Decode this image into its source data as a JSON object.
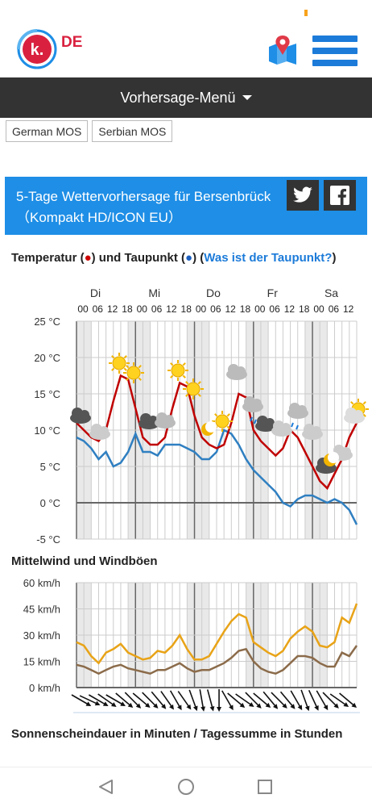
{
  "logo": {
    "letter": "k.",
    "country": "DE"
  },
  "menu": {
    "label": "Vorhersage-Menü"
  },
  "tabs": [
    "German MOS",
    "Serbian MOS"
  ],
  "header": {
    "title": "5-Tage Wettervorhersage für Bersenbrück（Kompakt HD/ICON EU）"
  },
  "icons": {
    "twitter": "twitter-icon",
    "facebook": "facebook-icon",
    "map": "map-pin-icon",
    "menu": "hamburger-icon"
  },
  "colors": {
    "brand_blue": "#1e8ee6",
    "temp": "#c00000",
    "dew": "#2f7fc1",
    "wind": "#8b6b4a",
    "gust": "#e8a317"
  },
  "temp_section": {
    "title_a": "Temperatur (",
    "dot_red": "●",
    "title_b": ") und Taupunkt (",
    "dot_blue": "●",
    "title_c": ") (",
    "link": "Was ist der Taupunkt?",
    "title_d": ")"
  },
  "wind_section": {
    "title": "Mittelwind und Windböen"
  },
  "sun_section": {
    "title": "Sonnenscheindauer in Minuten / Tagessumme in Stunden"
  },
  "chart_data": [
    {
      "type": "line",
      "title": "Temperatur und Taupunkt",
      "days": [
        "Di",
        "Mi",
        "Do",
        "Fr",
        "Sa"
      ],
      "hour_ticks": [
        "00",
        "06",
        "12",
        "18",
        "00",
        "06",
        "12",
        "18",
        "00",
        "06",
        "12",
        "18",
        "00",
        "06",
        "12",
        "18",
        "00",
        "06",
        "12"
      ],
      "y_ticks": [
        "25 °C",
        "20 °C",
        "15 °C",
        "10 °C",
        "5 °C",
        "0 °C",
        "-5 °C"
      ],
      "ylim": [
        -5,
        25
      ],
      "xlim_hours": [
        0,
        114
      ],
      "series": [
        {
          "name": "Temperatur",
          "x": [
            0,
            3,
            6,
            9,
            12,
            15,
            18,
            21,
            24,
            27,
            30,
            33,
            36,
            39,
            42,
            45,
            48,
            51,
            54,
            57,
            60,
            63,
            66,
            69,
            72,
            75,
            78,
            81,
            84,
            87,
            90,
            93,
            96,
            99,
            102,
            105,
            108,
            111,
            114
          ],
          "values": [
            11,
            10,
            9,
            8.5,
            10,
            14,
            17.5,
            17,
            13,
            9,
            8,
            8,
            9,
            13,
            16.5,
            16,
            12,
            9,
            8,
            7.5,
            8,
            11,
            15,
            14.5,
            10,
            8.5,
            7.5,
            6.5,
            7.5,
            10,
            9,
            7,
            5,
            3,
            2,
            4,
            6,
            9,
            11
          ]
        },
        {
          "name": "Taupunkt",
          "x": [
            0,
            3,
            6,
            9,
            12,
            15,
            18,
            21,
            24,
            27,
            30,
            33,
            36,
            39,
            42,
            45,
            48,
            51,
            54,
            57,
            60,
            63,
            66,
            69,
            72,
            75,
            78,
            81,
            84,
            87,
            90,
            93,
            96,
            99,
            102,
            105,
            108,
            111,
            114
          ],
          "values": [
            9,
            8.5,
            7.5,
            6,
            7,
            5,
            5.5,
            7,
            9.5,
            7,
            7,
            6.5,
            8,
            8,
            8,
            7.5,
            7,
            6,
            6,
            7,
            10,
            9.5,
            8,
            6,
            4.5,
            3.5,
            2.5,
            1.5,
            0,
            -0.5,
            0.5,
            1,
            1,
            0.5,
            0,
            0.5,
            0,
            -1,
            -3
          ]
        }
      ]
    },
    {
      "type": "line",
      "title": "Mittelwind und Windböen",
      "y_ticks": [
        "60 km/h",
        "45 km/h",
        "30 km/h",
        "15 km/h",
        "0 km/h"
      ],
      "ylim": [
        0,
        60
      ],
      "xlim_hours": [
        0,
        114
      ],
      "series": [
        {
          "name": "Mittelwind",
          "x": [
            0,
            3,
            6,
            9,
            12,
            15,
            18,
            21,
            24,
            27,
            30,
            33,
            36,
            39,
            42,
            45,
            48,
            51,
            54,
            57,
            60,
            63,
            66,
            69,
            72,
            75,
            78,
            81,
            84,
            87,
            90,
            93,
            96,
            99,
            102,
            105,
            108,
            111,
            114
          ],
          "values": [
            13,
            12,
            10,
            8,
            10,
            12,
            13,
            11,
            10,
            9,
            8,
            10,
            10,
            12,
            14,
            11,
            9,
            10,
            10,
            12,
            14,
            17,
            21,
            22,
            15,
            11,
            9,
            8,
            10,
            14,
            18,
            18,
            17,
            14,
            12,
            12,
            20,
            18,
            24
          ]
        },
        {
          "name": "Windböen",
          "x": [
            0,
            3,
            6,
            9,
            12,
            15,
            18,
            21,
            24,
            27,
            30,
            33,
            36,
            39,
            42,
            45,
            48,
            51,
            54,
            57,
            60,
            63,
            66,
            69,
            72,
            75,
            78,
            81,
            84,
            87,
            90,
            93,
            96,
            99,
            102,
            105,
            108,
            111,
            114
          ],
          "values": [
            26,
            24,
            18,
            14,
            20,
            22,
            25,
            20,
            18,
            16,
            17,
            21,
            20,
            24,
            30,
            22,
            16,
            16,
            18,
            25,
            32,
            38,
            42,
            40,
            26,
            23,
            20,
            18,
            21,
            28,
            32,
            35,
            32,
            24,
            23,
            26,
            40,
            37,
            48
          ]
        }
      ]
    }
  ]
}
